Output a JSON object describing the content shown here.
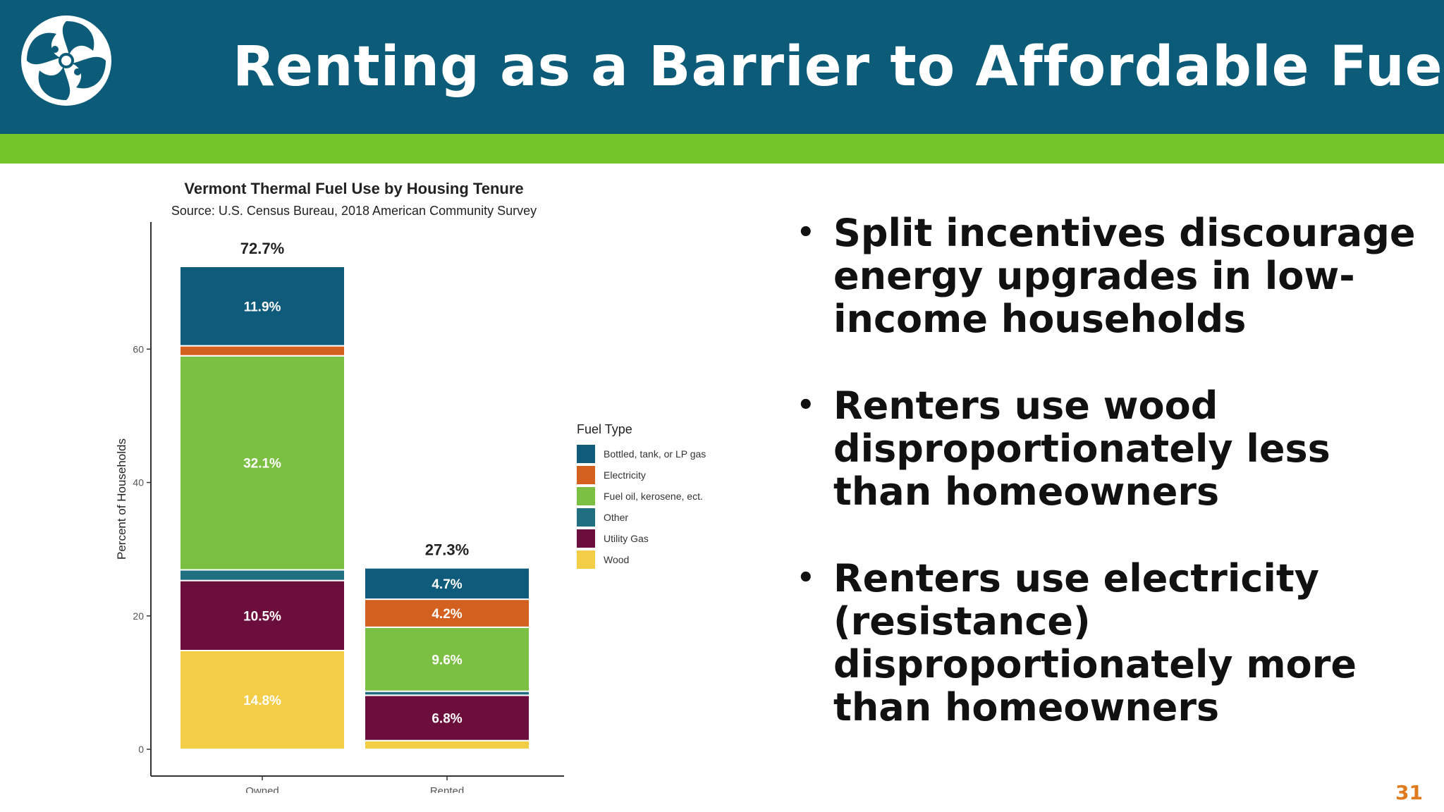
{
  "slide": {
    "title": "Renting as a Barrier to Affordable Fuel",
    "page_number": "31",
    "bullets": [
      "Split incentives discourage energy upgrades in low-income households",
      "Renters use wood disproportionately less than homeowners",
      "Renters use electricity (resistance) disproportionately more than homeowners"
    ],
    "colors": {
      "header": "#0c5c79",
      "band": "#74c529",
      "page_number": "#e07a1f"
    }
  },
  "chart_data": {
    "type": "bar",
    "stacked": true,
    "title": "Vermont Thermal Fuel Use by Housing Tenure",
    "subtitle": "Source: U.S. Census Bureau, 2018 American Community Survey",
    "xlabel": "",
    "ylabel": "Percent of Households",
    "categories": [
      "Owned",
      "Rented"
    ],
    "totals": [
      "72.7%",
      "27.3%"
    ],
    "ylim": [
      0,
      78
    ],
    "yticks": [
      0,
      20,
      40,
      60
    ],
    "legend_title": "Fuel Type",
    "legend_position": "right",
    "series": [
      {
        "name": "Wood",
        "color": "#f3cd45",
        "values": [
          14.8,
          1.3
        ],
        "labels": [
          "14.8%",
          ""
        ]
      },
      {
        "name": "Utility Gas",
        "color": "#6c0e3c",
        "values": [
          10.5,
          6.8
        ],
        "labels": [
          "10.5%",
          "6.8%"
        ]
      },
      {
        "name": "Other",
        "color": "#1f6f80",
        "values": [
          1.6,
          0.6
        ],
        "labels": [
          "",
          ""
        ]
      },
      {
        "name": "Fuel oil, kerosene, ect.",
        "color": "#7cc043",
        "values": [
          32.1,
          9.6
        ],
        "labels": [
          "32.1%",
          "9.6%"
        ]
      },
      {
        "name": "Electricity",
        "color": "#d46020",
        "values": [
          1.5,
          4.2
        ],
        "labels": [
          "",
          "4.2%"
        ]
      },
      {
        "name": "Bottled, tank, or LP gas",
        "color": "#0f5b7c",
        "values": [
          11.9,
          4.7
        ],
        "labels": [
          "11.9%",
          "4.7%"
        ]
      }
    ],
    "legend_order": [
      "Bottled, tank, or LP gas",
      "Electricity",
      "Fuel oil, kerosene, ect.",
      "Other",
      "Utility Gas",
      "Wood"
    ]
  }
}
